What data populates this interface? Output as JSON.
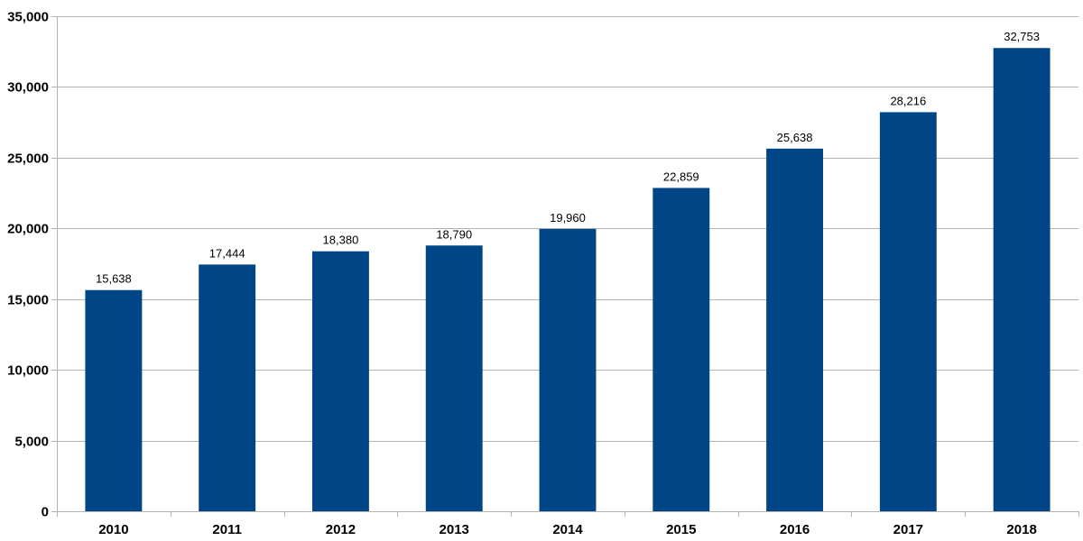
{
  "chart_data": {
    "type": "bar",
    "title": "",
    "xlabel": "",
    "ylabel": "",
    "categories": [
      "2010",
      "2011",
      "2012",
      "2013",
      "2014",
      "2015",
      "2016",
      "2017",
      "2018"
    ],
    "values": [
      15638,
      17444,
      18380,
      18790,
      19960,
      22859,
      25638,
      28216,
      32753
    ],
    "data_labels": [
      "15,638",
      "17,444",
      "18,380",
      "18,790",
      "19,960",
      "22,859",
      "25,638",
      "28,216",
      "32,753"
    ],
    "ylim": [
      0,
      35000
    ],
    "y_ticks": [
      0,
      5000,
      10000,
      15000,
      20000,
      25000,
      30000,
      35000
    ],
    "y_tick_labels": [
      "0",
      "5,000",
      "10,000",
      "15,000",
      "20,000",
      "25,000",
      "30,000",
      "35,000"
    ],
    "grid": true,
    "legend": "none",
    "bar_color": "#004586"
  }
}
